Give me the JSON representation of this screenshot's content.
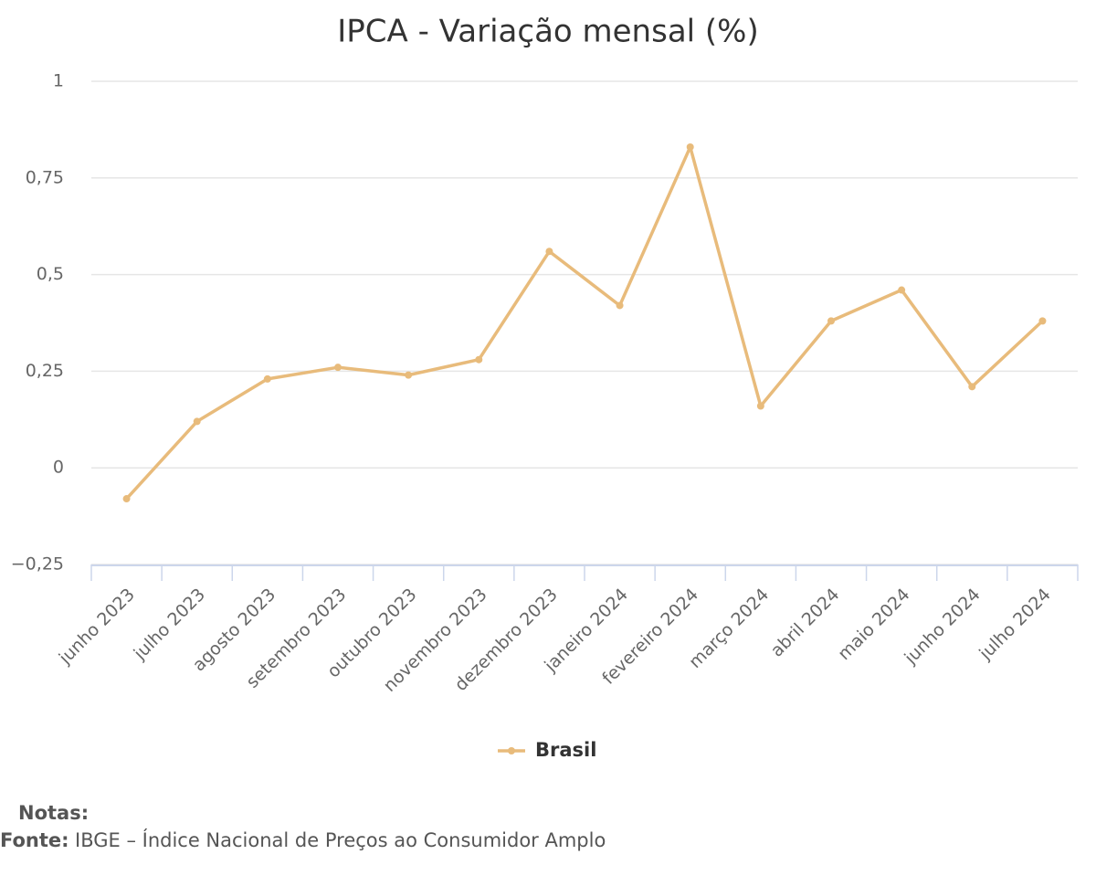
{
  "chart_data": {
    "type": "line",
    "title": "IPCA - Variação mensal (%)",
    "categories": [
      "junho 2023",
      "julho 2023",
      "agosto 2023",
      "setembro 2023",
      "outubro 2023",
      "novembro 2023",
      "dezembro 2023",
      "janeiro 2024",
      "fevereiro 2024",
      "março 2024",
      "abril 2024",
      "maio 2024",
      "junho 2024",
      "julho 2024"
    ],
    "series": [
      {
        "name": "Brasil",
        "color": "#e8bb7b",
        "values": [
          -0.08,
          0.12,
          0.23,
          0.26,
          0.24,
          0.28,
          0.56,
          0.42,
          0.83,
          0.16,
          0.38,
          0.46,
          0.21,
          0.38
        ]
      }
    ],
    "ylim": [
      -0.25,
      1
    ],
    "yticks": [
      {
        "value": -0.25,
        "label": "−0,25"
      },
      0,
      {
        "value": 0.25,
        "label": "0,25"
      },
      {
        "value": 0.5,
        "label": "0,5"
      },
      {
        "value": 0.75,
        "label": "0,75"
      },
      1
    ],
    "grid": true,
    "legend": "bottom"
  },
  "footer": {
    "notes_label": "Notas:",
    "source_label": "Fonte:",
    "source": "IBGE – Índice Nacional de Preços ao Consumidor Amplo"
  }
}
